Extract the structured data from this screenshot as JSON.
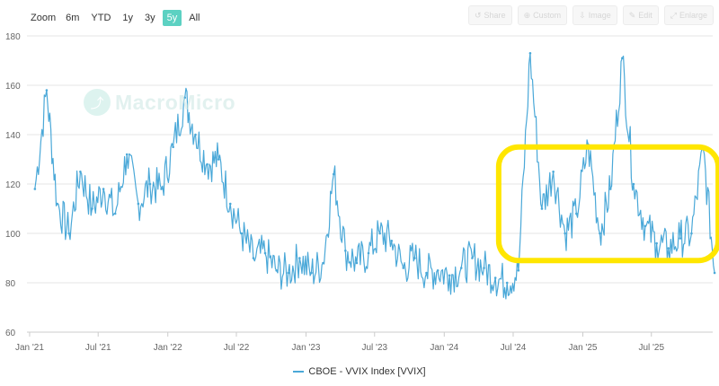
{
  "zoom": {
    "label": "Zoom",
    "options": [
      "6m",
      "YTD",
      "1y",
      "3y",
      "5y",
      "All"
    ],
    "active": "5y"
  },
  "toolbar": {
    "share": "Share",
    "custom": "Custom",
    "image": "Image",
    "edit": "Edit",
    "enlarge": "Enlarge"
  },
  "watermark": "MacroMicro",
  "colors": {
    "series": "#4aa8d8",
    "highlight": "#ffe600",
    "accent": "#5cd1c2"
  },
  "chart_data": {
    "type": "line",
    "title": "",
    "xlabel": "",
    "ylabel": "",
    "ylim": [
      60,
      180
    ],
    "yticks": [
      60,
      80,
      100,
      120,
      140,
      160,
      180
    ],
    "xticks": [
      "Jan '21",
      "Jul '21",
      "Jan '22",
      "Jul '22",
      "Jan '23",
      "Jul '23",
      "Jan '24",
      "Jul '24",
      "Jan '25",
      "Jul '25"
    ],
    "grid": true,
    "legend_position": "bottom",
    "series": [
      {
        "name": "CBOE - VVIX Index [VVIX]",
        "x": [
          "2021-01",
          "2021-02",
          "2021-03",
          "2021-04",
          "2021-05",
          "2021-06",
          "2021-07",
          "2021-08",
          "2021-09",
          "2021-10",
          "2021-11",
          "2021-12",
          "2022-01",
          "2022-02",
          "2022-03",
          "2022-04",
          "2022-05",
          "2022-06",
          "2022-07",
          "2022-08",
          "2022-09",
          "2022-10",
          "2022-11",
          "2022-12",
          "2023-01",
          "2023-02",
          "2023-03",
          "2023-04",
          "2023-05",
          "2023-06",
          "2023-07",
          "2023-08",
          "2023-09",
          "2023-10",
          "2023-11",
          "2023-12",
          "2024-01",
          "2024-02",
          "2024-03",
          "2024-04",
          "2024-05",
          "2024-06",
          "2024-07",
          "2024-08",
          "2024-09",
          "2024-10",
          "2024-11",
          "2024-12",
          "2025-01",
          "2025-02",
          "2025-03",
          "2025-04",
          "2025-05",
          "2025-06",
          "2025-07",
          "2025-08",
          "2025-09",
          "2025-10",
          "2025-11",
          "2025-12"
        ],
        "values": [
          118,
          158,
          112,
          100,
          125,
          110,
          118,
          108,
          132,
          112,
          120,
          118,
          135,
          155,
          140,
          128,
          130,
          112,
          100,
          90,
          92,
          85,
          84,
          90,
          84,
          88,
          124,
          93,
          88,
          92,
          100,
          97,
          86,
          90,
          84,
          85,
          83,
          86,
          90,
          86,
          82,
          80,
          85,
          173,
          110,
          125,
          100,
          108,
          136,
          100,
          118,
          171,
          120,
          103,
          96,
          94,
          98,
          100,
          134,
          84
        ]
      }
    ],
    "annotation": {
      "shape": "highlight-box",
      "from": "2024-07",
      "to": "2025-12",
      "ymin": 89,
      "ymax": 135
    }
  }
}
